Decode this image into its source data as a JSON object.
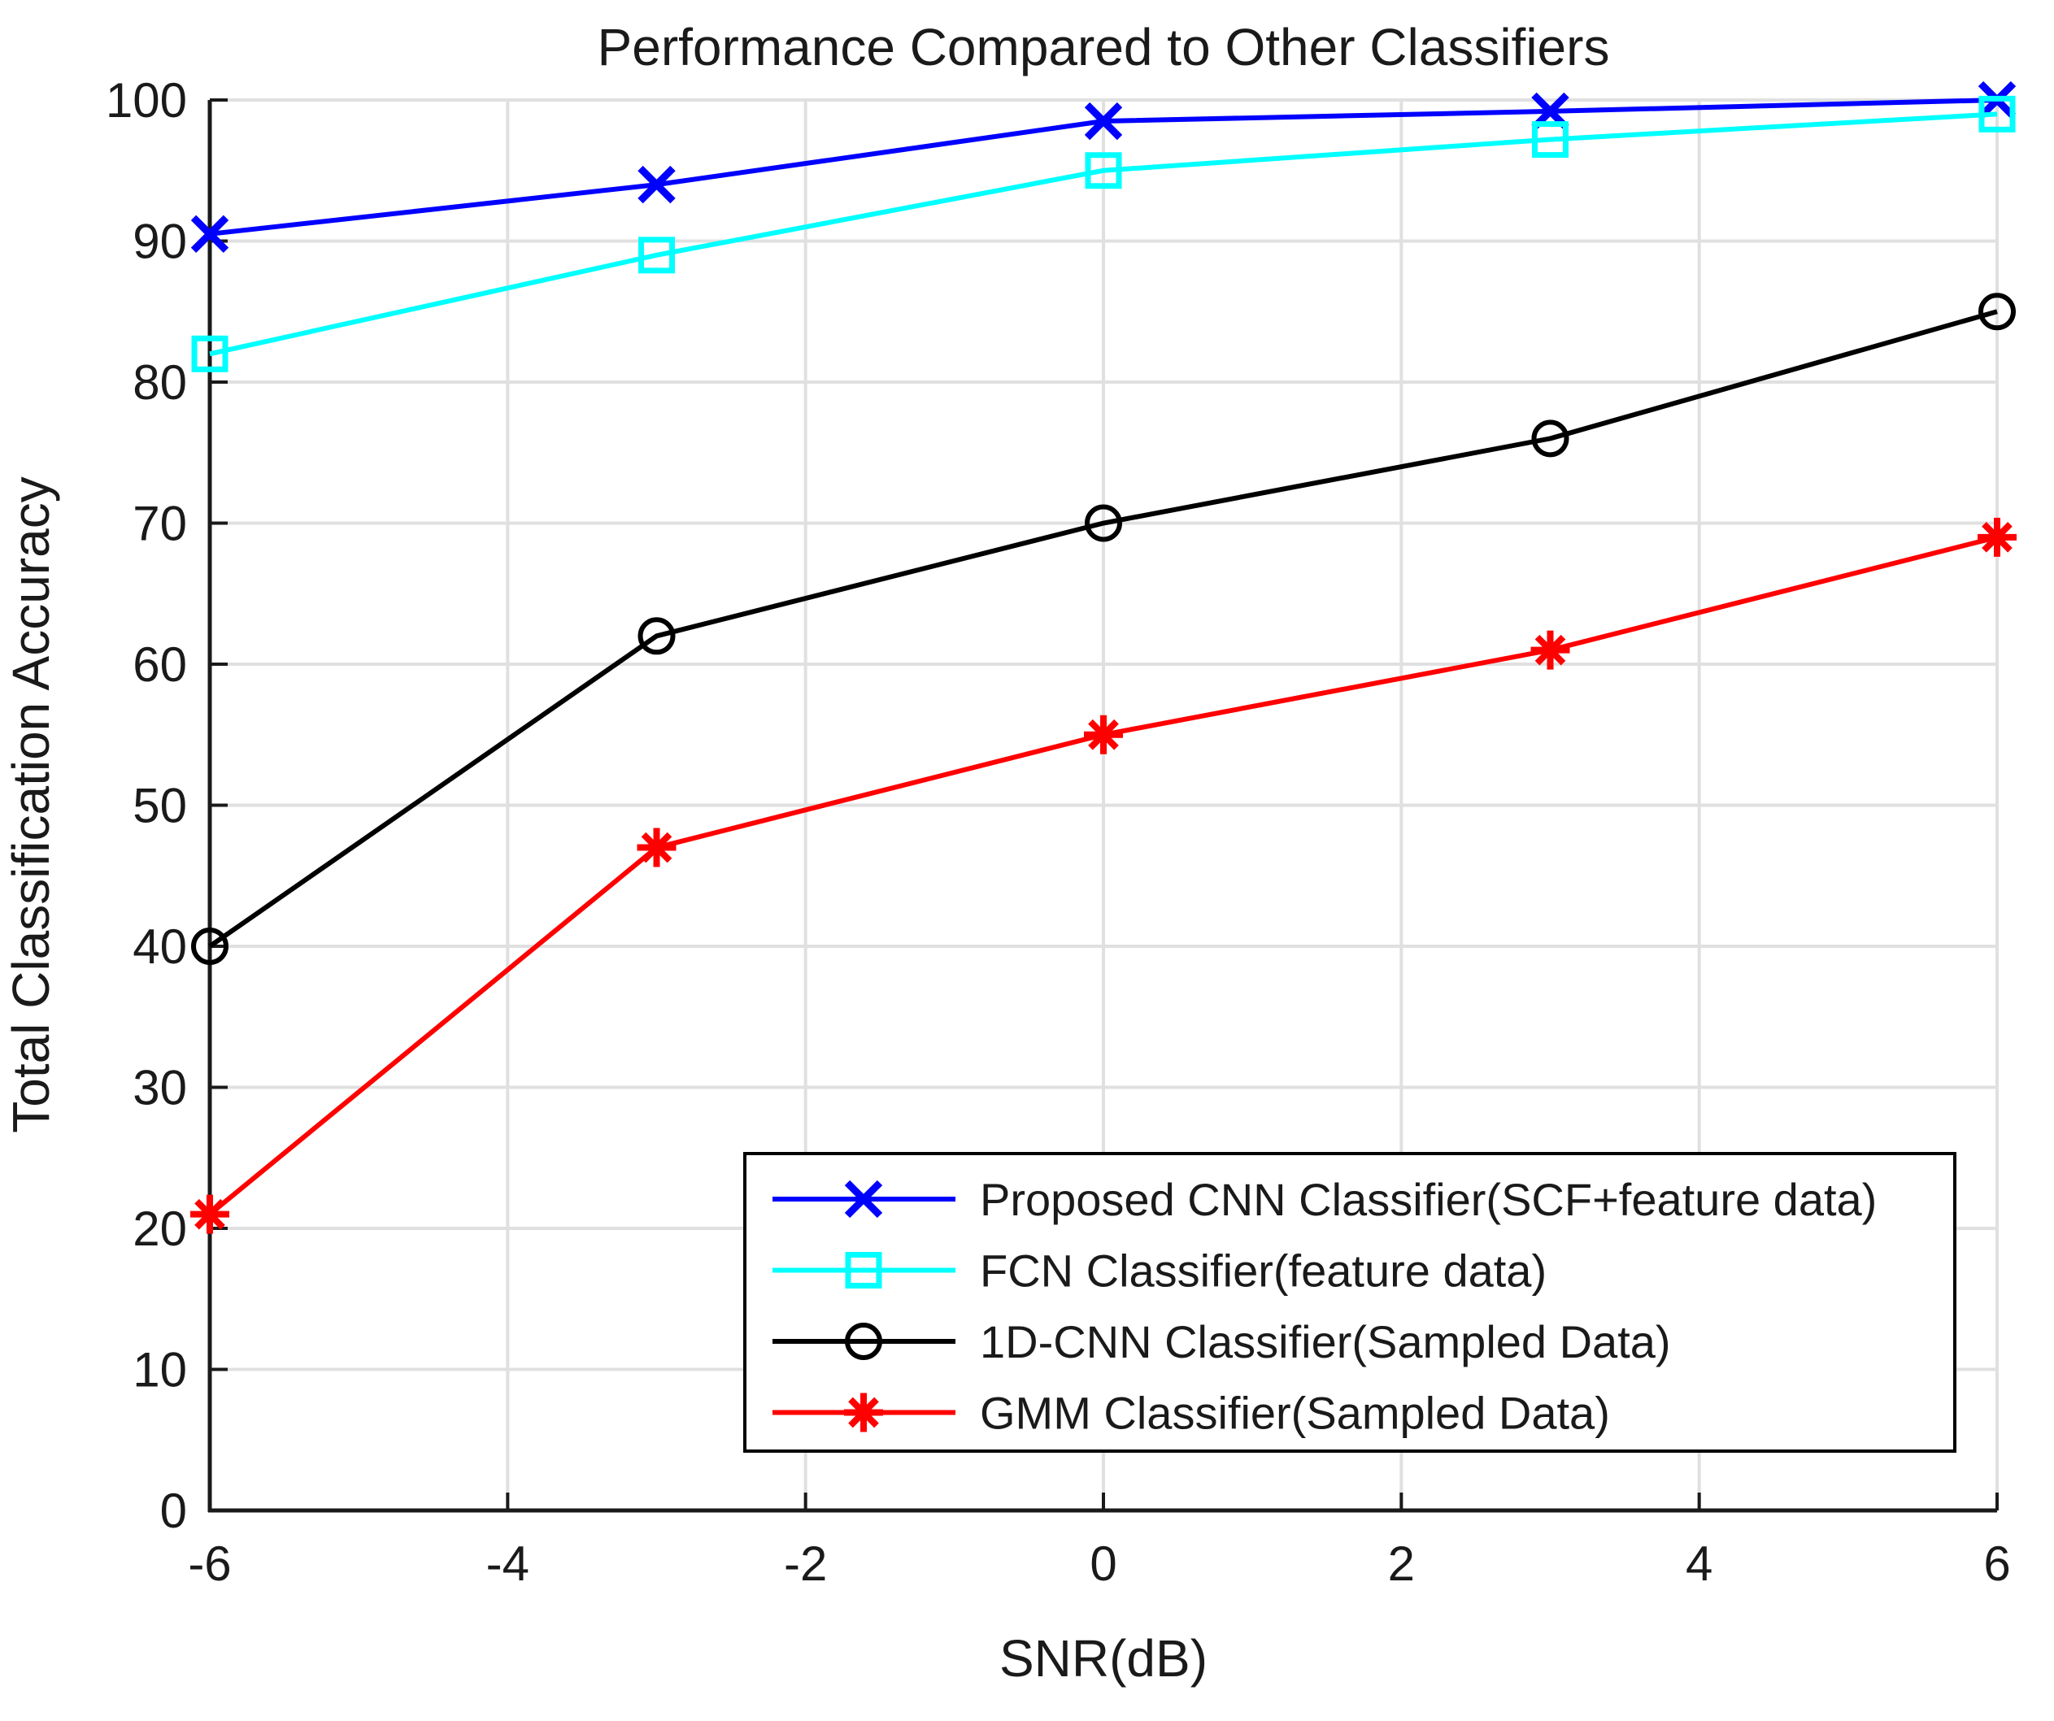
{
  "figure": {
    "background": "#ffffff"
  },
  "chart_data": {
    "type": "line",
    "title": "Performance Compared to Other Classifiers",
    "xlabel": "SNR(dB)",
    "ylabel": "Total Classification Accuracy",
    "xlim": [
      -6,
      6
    ],
    "ylim": [
      0,
      100
    ],
    "xticks": [
      -6,
      -4,
      -2,
      0,
      2,
      4,
      6
    ],
    "yticks": [
      0,
      10,
      20,
      30,
      40,
      50,
      60,
      70,
      80,
      90,
      100
    ],
    "grid": true,
    "legend_position": "lower right",
    "x": [
      -6,
      -3,
      0,
      3,
      6
    ],
    "series": [
      {
        "name": "Proposed CNN Classifier(SCF+feature data)",
        "color": "#0000ff",
        "marker": "x",
        "values": [
          90.5,
          94,
          98.5,
          99.2,
          100
        ]
      },
      {
        "name": "FCN Classifier(feature data)",
        "color": "#00ffff",
        "marker": "square",
        "values": [
          82,
          89,
          95,
          97.2,
          99
        ]
      },
      {
        "name": "1D-CNN Classifier(Sampled Data)",
        "color": "#000000",
        "marker": "circle",
        "values": [
          40,
          62,
          70,
          76,
          85
        ]
      },
      {
        "name": "GMM Classifier(Sampled Data)",
        "color": "#ff0000",
        "marker": "asterisk",
        "values": [
          21,
          47,
          55,
          61,
          69
        ]
      }
    ],
    "colors": {
      "grid": "#e0e0e0",
      "axis": "#1a1a1a",
      "text": "#1a1a1a",
      "legend_border": "#000000",
      "background": "#ffffff"
    }
  }
}
